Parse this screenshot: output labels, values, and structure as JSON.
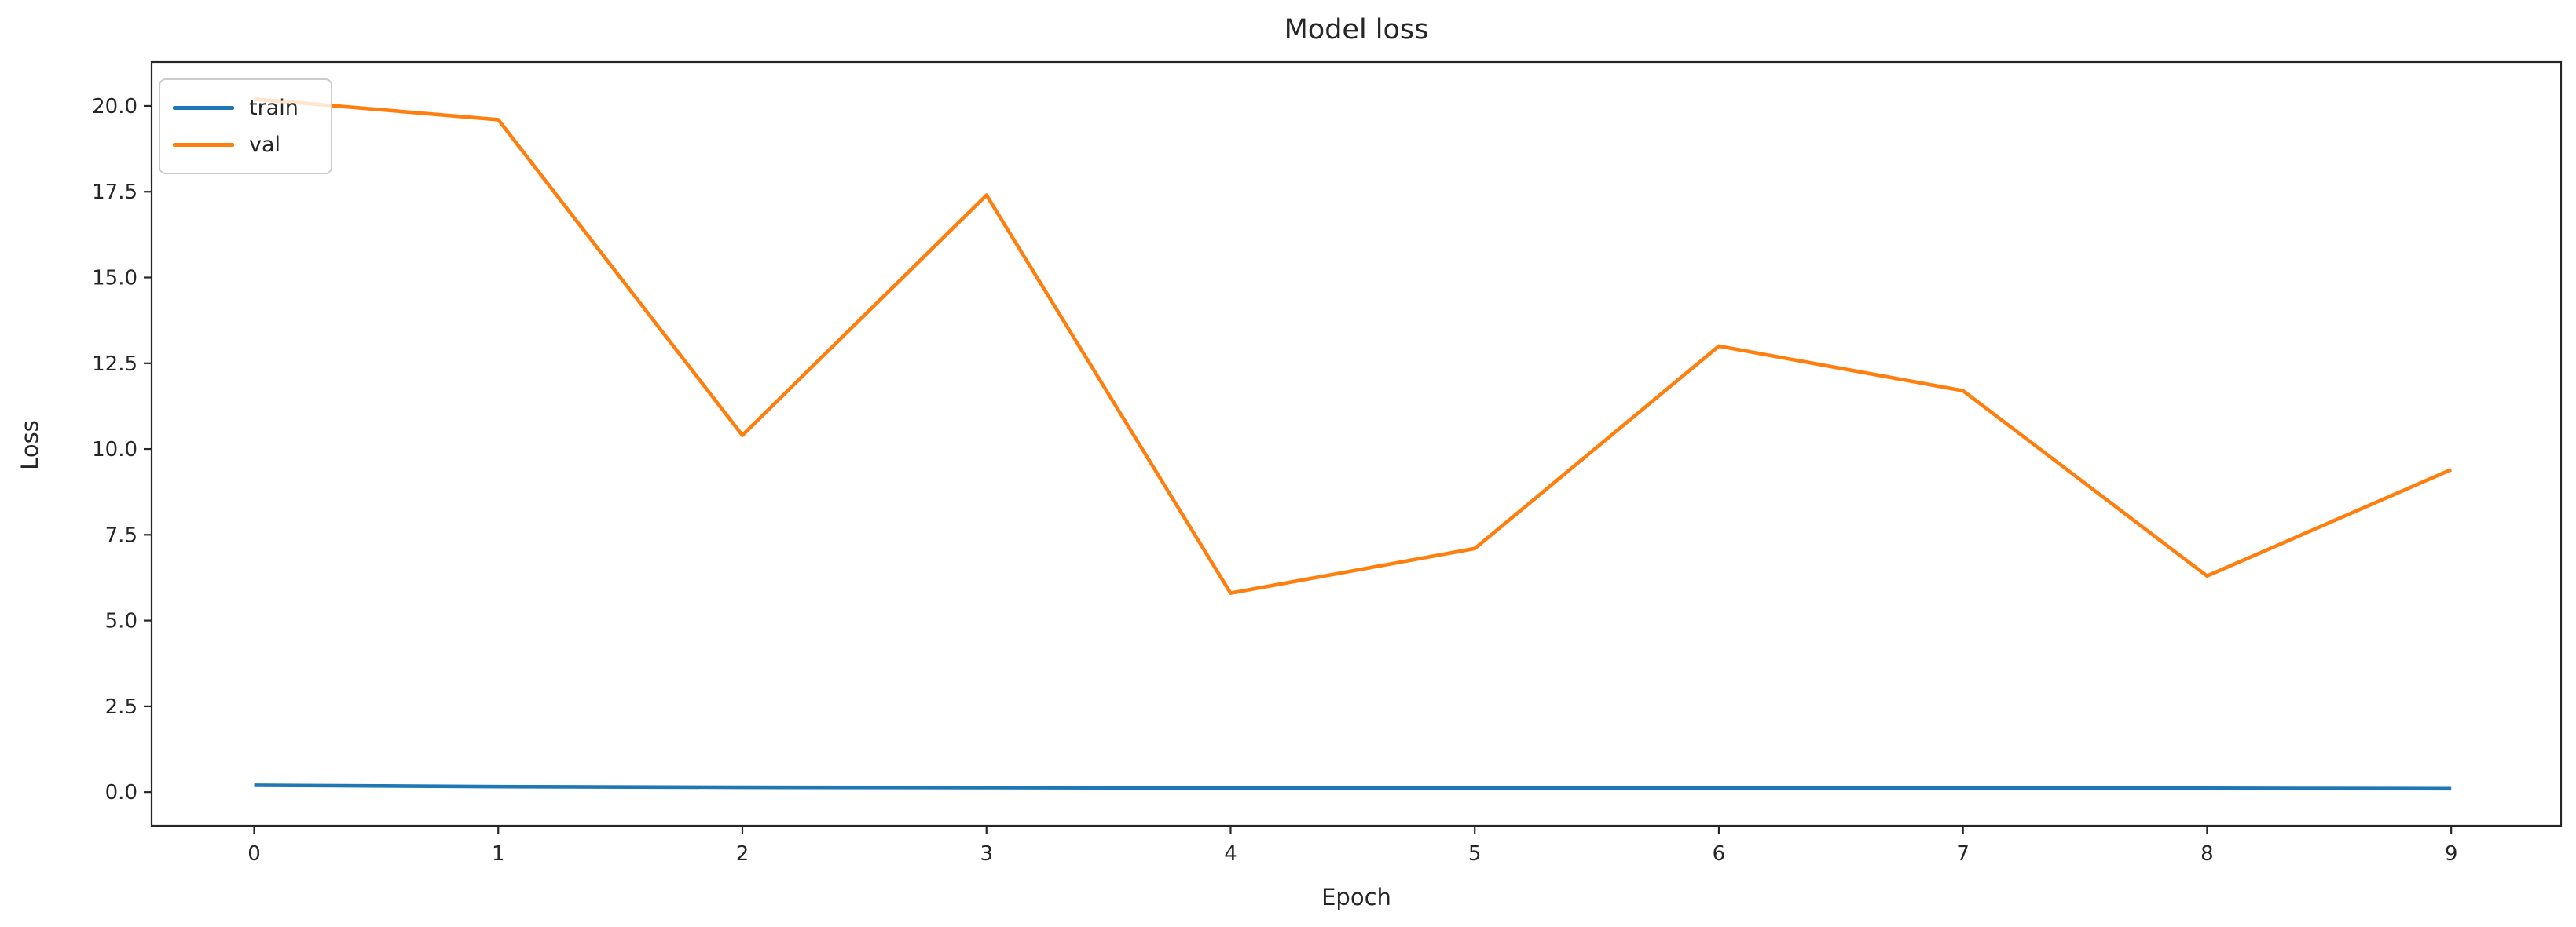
{
  "figure": {
    "title": "Model loss",
    "xlabel": "Epoch",
    "ylabel": "Loss"
  },
  "chart_data": {
    "type": "line",
    "title": "Model loss",
    "xlabel": "Epoch",
    "ylabel": "Loss",
    "x": [
      0,
      1,
      2,
      3,
      4,
      5,
      6,
      7,
      8,
      9
    ],
    "series": [
      {
        "name": "train",
        "color": "#1f77b4",
        "values": [
          0.2,
          0.16,
          0.14,
          0.13,
          0.12,
          0.12,
          0.11,
          0.11,
          0.11,
          0.1
        ]
      },
      {
        "name": "val",
        "color": "#ff7f0e",
        "values": [
          20.2,
          19.6,
          10.4,
          17.4,
          5.8,
          7.1,
          13.0,
          11.7,
          6.3,
          9.4
        ]
      }
    ],
    "xticks": [
      0,
      1,
      2,
      3,
      4,
      5,
      6,
      7,
      8,
      9
    ],
    "yticks": [
      0.0,
      2.5,
      5.0,
      7.5,
      10.0,
      12.5,
      15.0,
      17.5,
      20.0
    ],
    "xlim": [
      -0.42,
      9.45
    ],
    "ylim": [
      -0.98,
      21.28
    ],
    "grid": false,
    "legend_position": "upper left",
    "axis_color": "#262626",
    "text_color": "#262626"
  }
}
